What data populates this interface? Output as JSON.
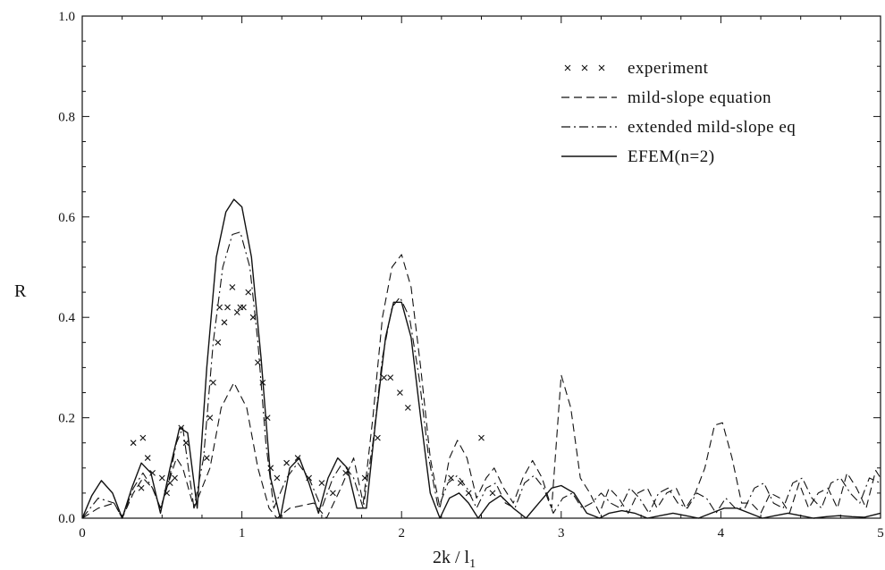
{
  "chart_data": {
    "type": "line",
    "xlabel": "2k / l",
    "xlabel_subscript": "1",
    "ylabel": "R",
    "xlim": [
      0,
      5
    ],
    "ylim": [
      0,
      1.0
    ],
    "x_ticks": [
      0,
      1,
      2,
      3,
      4,
      5
    ],
    "x_tick_labels": [
      "0",
      "1",
      "2",
      "3",
      "4",
      "5"
    ],
    "y_ticks": [
      0,
      0.2,
      0.4,
      0.6,
      0.8,
      1.0
    ],
    "y_tick_labels": [
      "0.0",
      "0.2",
      "0.4",
      "0.6",
      "0.8",
      "1.0"
    ],
    "grid": false,
    "legend_position": "top-right",
    "series": [
      {
        "name": "experiment",
        "style": "markers-x",
        "points": [
          [
            0.32,
            0.15
          ],
          [
            0.37,
            0.06
          ],
          [
            0.38,
            0.16
          ],
          [
            0.41,
            0.12
          ],
          [
            0.44,
            0.09
          ],
          [
            0.5,
            0.08
          ],
          [
            0.53,
            0.05
          ],
          [
            0.55,
            0.07
          ],
          [
            0.58,
            0.08
          ],
          [
            0.62,
            0.18
          ],
          [
            0.65,
            0.15
          ],
          [
            0.78,
            0.12
          ],
          [
            0.8,
            0.2
          ],
          [
            0.82,
            0.27
          ],
          [
            0.85,
            0.35
          ],
          [
            0.86,
            0.42
          ],
          [
            0.89,
            0.39
          ],
          [
            0.91,
            0.42
          ],
          [
            0.94,
            0.46
          ],
          [
            0.97,
            0.41
          ],
          [
            0.99,
            0.42
          ],
          [
            1.01,
            0.42
          ],
          [
            1.04,
            0.45
          ],
          [
            1.07,
            0.4
          ],
          [
            1.1,
            0.31
          ],
          [
            1.13,
            0.27
          ],
          [
            1.16,
            0.2
          ],
          [
            1.18,
            0.1
          ],
          [
            1.22,
            0.08
          ],
          [
            1.28,
            0.11
          ],
          [
            1.35,
            0.12
          ],
          [
            1.42,
            0.08
          ],
          [
            1.5,
            0.07
          ],
          [
            1.57,
            0.05
          ],
          [
            1.65,
            0.09
          ],
          [
            1.77,
            0.08
          ],
          [
            1.85,
            0.16
          ],
          [
            1.89,
            0.28
          ],
          [
            1.93,
            0.28
          ],
          [
            1.99,
            0.25
          ],
          [
            2.04,
            0.22
          ],
          [
            2.31,
            0.08
          ],
          [
            2.37,
            0.07
          ],
          [
            2.42,
            0.05
          ],
          [
            2.5,
            0.16
          ],
          [
            2.57,
            0.05
          ]
        ]
      },
      {
        "name": "mild-slope equation",
        "style": "dashed",
        "x": [
          0,
          0.1,
          0.2,
          0.25,
          0.32,
          0.38,
          0.44,
          0.49,
          0.54,
          0.59,
          0.63,
          0.7,
          0.8,
          0.87,
          0.95,
          1.03,
          1.1,
          1.17,
          1.22,
          1.3,
          1.45,
          1.53,
          1.62,
          1.7,
          1.76,
          1.82,
          1.88,
          1.94,
          2.0,
          2.06,
          2.12,
          2.18,
          2.24,
          2.3,
          2.35,
          2.41,
          2.47,
          2.53,
          2.58,
          2.64,
          2.7,
          2.76,
          2.82,
          2.88,
          2.94,
          3.0,
          3.06,
          3.12,
          3.18,
          3.24,
          3.3,
          3.36,
          3.42,
          3.48,
          3.54,
          3.6,
          3.66,
          3.72,
          3.78,
          3.84,
          3.9,
          3.96,
          4.01,
          4.07,
          4.13,
          4.19,
          4.25,
          4.31,
          4.37,
          4.43,
          4.49,
          4.55,
          4.61,
          4.67,
          4.73,
          4.79,
          4.85,
          4.91,
          4.97,
          5.0
        ],
        "values": [
          0,
          0.02,
          0.03,
          0,
          0.05,
          0.08,
          0.06,
          0.02,
          0.07,
          0.12,
          0.1,
          0.02,
          0.1,
          0.22,
          0.27,
          0.22,
          0.1,
          0.02,
          0,
          0.02,
          0.03,
          0.0,
          0.06,
          0.12,
          0.03,
          0.2,
          0.4,
          0.5,
          0.525,
          0.46,
          0.3,
          0.12,
          0.02,
          0.12,
          0.155,
          0.12,
          0.04,
          0.08,
          0.1,
          0.06,
          0.03,
          0.08,
          0.115,
          0.08,
          0.02,
          0.285,
          0.22,
          0.08,
          0.05,
          0.01,
          0.06,
          0.04,
          0.01,
          0.05,
          0.06,
          0.02,
          0.05,
          0.06,
          0.02,
          0.05,
          0.1,
          0.185,
          0.19,
          0.12,
          0.03,
          0.03,
          0.01,
          0.05,
          0.04,
          0.01,
          0.07,
          0.02,
          0.05,
          0.06,
          0.02,
          0.09,
          0.06,
          0.02,
          0.095,
          0.08
        ]
      },
      {
        "name": "extended mild-slope eq",
        "style": "dash-dot",
        "x": [
          0,
          0.1,
          0.2,
          0.25,
          0.32,
          0.38,
          0.44,
          0.49,
          0.54,
          0.59,
          0.63,
          0.7,
          0.76,
          0.82,
          0.88,
          0.94,
          0.99,
          1.05,
          1.1,
          1.15,
          1.2,
          1.28,
          1.35,
          1.42,
          1.5,
          1.57,
          1.63,
          1.7,
          1.76,
          1.82,
          1.88,
          1.94,
          1.99,
          2.05,
          2.11,
          2.17,
          2.23,
          2.29,
          2.35,
          2.41,
          2.47,
          2.53,
          2.59,
          2.65,
          2.71,
          2.77,
          2.83,
          2.89,
          2.95,
          3.01,
          3.07,
          3.13,
          3.19,
          3.25,
          3.31,
          3.37,
          3.43,
          3.49,
          3.55,
          3.61,
          3.67,
          3.73,
          3.79,
          3.85,
          3.91,
          3.97,
          4.03,
          4.09,
          4.15,
          4.21,
          4.27,
          4.33,
          4.39,
          4.45,
          4.51,
          4.57,
          4.63,
          4.69,
          4.75,
          4.81,
          4.87,
          4.93,
          5.0
        ],
        "values": [
          0,
          0.04,
          0.03,
          0,
          0.06,
          0.09,
          0.06,
          0.02,
          0.07,
          0.15,
          0.18,
          0.02,
          0.12,
          0.35,
          0.5,
          0.565,
          0.57,
          0.5,
          0.35,
          0.15,
          0.02,
          0.08,
          0.11,
          0.08,
          0.02,
          0.08,
          0.11,
          0.08,
          0.02,
          0.15,
          0.32,
          0.42,
          0.44,
          0.4,
          0.28,
          0.12,
          0.02,
          0.07,
          0.085,
          0.06,
          0.02,
          0.06,
          0.07,
          0.03,
          0.02,
          0.07,
          0.085,
          0.06,
          0.01,
          0.04,
          0.05,
          0.02,
          0.03,
          0.05,
          0.03,
          0.02,
          0.06,
          0.04,
          0.01,
          0.05,
          0.06,
          0.03,
          0.02,
          0.05,
          0.04,
          0.01,
          0.04,
          0.02,
          0.02,
          0.06,
          0.07,
          0.03,
          0.02,
          0.07,
          0.08,
          0.04,
          0.02,
          0.07,
          0.08,
          0.05,
          0.03,
          0.08,
          0.07
        ]
      },
      {
        "name": "EFEM(n=2)",
        "style": "solid",
        "x": [
          0,
          0.06,
          0.12,
          0.19,
          0.25,
          0.31,
          0.37,
          0.43,
          0.49,
          0.55,
          0.61,
          0.66,
          0.72,
          0.78,
          0.84,
          0.9,
          0.95,
          1.0,
          1.06,
          1.12,
          1.18,
          1.24,
          1.3,
          1.36,
          1.42,
          1.48,
          1.54,
          1.6,
          1.66,
          1.72,
          1.78,
          1.84,
          1.9,
          1.95,
          2.0,
          2.06,
          2.12,
          2.18,
          2.24,
          2.3,
          2.36,
          2.42,
          2.48,
          2.55,
          2.62,
          2.7,
          2.78,
          2.86,
          2.94,
          3.0,
          3.08,
          3.16,
          3.24,
          3.3,
          3.38,
          3.46,
          3.54,
          3.62,
          3.7,
          3.78,
          3.86,
          3.94,
          4.02,
          4.1,
          4.18,
          4.26,
          4.34,
          4.42,
          4.5,
          4.58,
          4.66,
          4.74,
          4.82,
          4.9,
          5.0
        ],
        "values": [
          0,
          0.045,
          0.075,
          0.05,
          0,
          0.06,
          0.11,
          0.09,
          0.01,
          0.1,
          0.18,
          0.17,
          0.02,
          0.3,
          0.52,
          0.61,
          0.635,
          0.62,
          0.52,
          0.32,
          0.08,
          0,
          0.1,
          0.12,
          0.07,
          0.01,
          0.08,
          0.12,
          0.1,
          0.02,
          0.02,
          0.2,
          0.36,
          0.43,
          0.43,
          0.36,
          0.2,
          0.05,
          0,
          0.04,
          0.05,
          0.03,
          0,
          0.03,
          0.045,
          0.02,
          0,
          0.03,
          0.06,
          0.065,
          0.05,
          0.01,
          0,
          0.01,
          0.015,
          0.01,
          0,
          0.005,
          0.01,
          0.005,
          0,
          0.01,
          0.02,
          0.02,
          0.01,
          0,
          0.005,
          0.01,
          0.005,
          0,
          0.003,
          0.005,
          0.003,
          0.002,
          0.01
        ]
      }
    ]
  }
}
